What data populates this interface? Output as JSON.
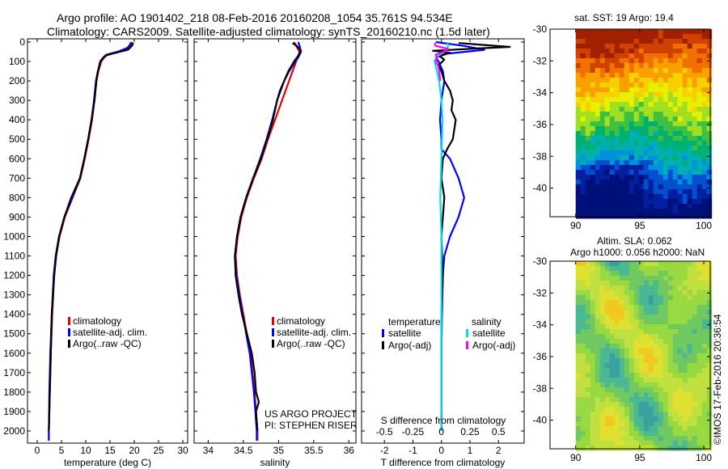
{
  "header": {
    "line1": "Argo profile: AO 1901402_218 08-Feb-2016 20160208_1054 35.761S 94.534E",
    "line2": "Climatology: CARS2009. Satellite-adjusted climatology: synTS_20160210.nc (1.5d later)"
  },
  "colors": {
    "climatology": "#e00000",
    "satellite": "#0000ff",
    "argo": "#000000",
    "sat_salinity": "#00e0e0",
    "argo_salinity": "#ff00ff"
  },
  "chart_data": [
    {
      "type": "line",
      "id": "temperature",
      "xlabel": "temperature (deg C)",
      "ylabel": "",
      "xlim": [
        -2,
        31
      ],
      "ylim": [
        2050,
        0
      ],
      "x_ticks": [
        0,
        5,
        10,
        15,
        20,
        25,
        30
      ],
      "y_ticks": [
        0,
        100,
        200,
        300,
        400,
        500,
        600,
        700,
        800,
        900,
        1000,
        1100,
        1200,
        1300,
        1400,
        1500,
        1600,
        1700,
        1800,
        1900,
        2000
      ],
      "legend": [
        "climatology",
        "satellite-adj. clim.",
        "Argo(..raw -QC)"
      ],
      "series": [
        {
          "name": "climatology",
          "color": "#e00000",
          "y": [
            0,
            10,
            30,
            50,
            65,
            80,
            100,
            150,
            200,
            250,
            300,
            400,
            500,
            600,
            700,
            800,
            900,
            1000,
            1100,
            1200,
            1400,
            1600,
            1800,
            2000,
            2050
          ],
          "values": [
            19.6,
            19.5,
            19.0,
            17.0,
            14.5,
            13.8,
            13.2,
            12.6,
            12.2,
            12.0,
            11.8,
            11.3,
            10.6,
            9.8,
            8.9,
            7.3,
            5.7,
            4.6,
            3.9,
            3.5,
            3.1,
            2.8,
            2.6,
            2.4,
            2.4
          ]
        },
        {
          "name": "satellite-adj. clim.",
          "color": "#0000ff",
          "y": [
            0,
            10,
            30,
            50,
            65,
            80,
            100,
            150,
            200,
            250,
            300,
            400,
            500,
            600,
            700,
            800,
            900,
            1000,
            1100,
            1200,
            1400,
            1600,
            1800,
            2000,
            2050
          ],
          "values": [
            19.3,
            19.2,
            18.6,
            16.6,
            14.3,
            13.6,
            13.0,
            12.5,
            12.1,
            11.9,
            11.7,
            11.2,
            10.5,
            9.7,
            8.8,
            7.2,
            5.6,
            4.5,
            3.8,
            3.4,
            3.0,
            2.7,
            2.5,
            2.4,
            2.4
          ]
        },
        {
          "name": "Argo(..raw -QC)",
          "color": "#000000",
          "y": [
            5,
            20,
            40,
            55,
            70,
            85,
            100,
            150,
            200,
            300,
            400,
            500,
            600,
            700,
            800,
            900,
            1000,
            1100,
            1200,
            1400,
            1600,
            1800,
            1900,
            2000
          ],
          "values": [
            19.8,
            19.5,
            18.7,
            16.2,
            14.0,
            13.5,
            13.0,
            12.5,
            12.2,
            11.8,
            11.2,
            10.5,
            9.7,
            8.8,
            7.0,
            5.6,
            4.5,
            3.9,
            3.5,
            3.0,
            2.8,
            2.6,
            2.5,
            2.4
          ]
        }
      ]
    },
    {
      "type": "line",
      "id": "salinity",
      "xlabel": "salinity",
      "xlim": [
        33.8,
        36.1
      ],
      "ylim": [
        2050,
        0
      ],
      "x_ticks": [
        34,
        34.5,
        35,
        35.5,
        36
      ],
      "legend": [
        "climatology",
        "satellite-adj. clim.",
        "Argo(..raw -QC)"
      ],
      "annotation": [
        "US ARGO PROJECT",
        "PI: STEPHEN RISER"
      ],
      "series": [
        {
          "name": "climatology",
          "color": "#e00000",
          "y": [
            0,
            20,
            50,
            80,
            100,
            150,
            200,
            250,
            300,
            400,
            500,
            600,
            700,
            800,
            900,
            1000,
            1100,
            1200,
            1300,
            1400,
            1500,
            1600,
            1700,
            1800,
            1900,
            2000,
            2050
          ],
          "values": [
            35.22,
            35.25,
            35.3,
            35.27,
            35.25,
            35.2,
            35.15,
            35.1,
            35.05,
            34.95,
            34.85,
            34.76,
            34.65,
            34.55,
            34.47,
            34.42,
            34.39,
            34.41,
            34.45,
            34.5,
            34.55,
            34.6,
            34.63,
            34.66,
            34.68,
            34.7,
            34.7
          ]
        },
        {
          "name": "satellite-adj. clim.",
          "color": "#0000ff",
          "y": [
            0,
            20,
            50,
            80,
            100,
            150,
            200,
            250,
            300,
            400,
            500,
            600,
            700,
            800,
            900,
            1000,
            1100,
            1200,
            1300,
            1400,
            1500,
            1600,
            1700,
            1800,
            1900,
            2000,
            2050
          ],
          "values": [
            35.28,
            35.3,
            35.32,
            35.28,
            35.24,
            35.15,
            35.08,
            35.03,
            34.98,
            34.91,
            34.83,
            34.74,
            34.64,
            34.54,
            34.46,
            34.41,
            34.38,
            34.4,
            34.44,
            34.49,
            34.54,
            34.59,
            34.62,
            34.65,
            34.67,
            34.69,
            34.69
          ]
        },
        {
          "name": "Argo(..raw -QC)",
          "color": "#000000",
          "y": [
            5,
            20,
            40,
            60,
            80,
            100,
            150,
            200,
            250,
            300,
            400,
            500,
            600,
            700,
            800,
            900,
            1000,
            1100,
            1200,
            1300,
            1400,
            1500,
            1600,
            1700,
            1800,
            1850,
            1900,
            2000
          ],
          "values": [
            35.2,
            35.26,
            35.31,
            35.3,
            35.26,
            35.22,
            35.14,
            35.08,
            35.02,
            34.98,
            34.92,
            34.84,
            34.75,
            34.64,
            34.54,
            34.46,
            34.41,
            34.38,
            34.39,
            34.43,
            34.48,
            34.55,
            34.62,
            34.66,
            34.68,
            34.72,
            34.68,
            34.7
          ]
        }
      ]
    },
    {
      "type": "line",
      "id": "difference",
      "xlabel": "T difference from climatology",
      "xlabel_top": "S difference from climatology",
      "xlim": [
        -2.8,
        2.9
      ],
      "ylim": [
        2050,
        0
      ],
      "x_ticks": [
        -2,
        -1,
        0,
        1,
        2
      ],
      "s_ticks": [
        {
          "v": -0.5,
          "label": "-0.5"
        },
        {
          "v": -0.25,
          "label": "-0.25"
        },
        {
          "v": 0,
          "label": "0"
        },
        {
          "v": 0.25,
          "label": "0.25"
        },
        {
          "v": 0.5,
          "label": "0.5"
        }
      ],
      "legend_headers": [
        "temperature",
        "salinity"
      ],
      "legend": [
        "satellite",
        "Argo(-adj)",
        "satellite",
        "Argo(-adj)"
      ],
      "series": [
        {
          "name": "satellite",
          "group": "temperature",
          "color": "#0000ff",
          "y": [
            0,
            20,
            40,
            60,
            80,
            100,
            150,
            200,
            250,
            300,
            400,
            500,
            550,
            600,
            700,
            800,
            900,
            1000,
            1100,
            1200,
            1400,
            1600,
            1800,
            2000
          ],
          "values": [
            -0.2,
            0.8,
            1.5,
            0.2,
            -0.2,
            -0.1,
            0.05,
            0.1,
            0.05,
            0.0,
            -0.05,
            0.0,
            0.0,
            0.3,
            0.6,
            0.8,
            0.6,
            0.3,
            0.1,
            0.05,
            0.02,
            0.0,
            0.0,
            0.0
          ]
        },
        {
          "name": "Argo(-adj)",
          "group": "temperature",
          "color": "#000000",
          "y": [
            5,
            15,
            25,
            35,
            45,
            55,
            70,
            90,
            120,
            150,
            200,
            250,
            300,
            350,
            400,
            450,
            500,
            550,
            600,
            700,
            800,
            900,
            1000,
            1200,
            1400,
            1600,
            1800,
            2000
          ],
          "values": [
            0.6,
            1.5,
            2.4,
            1.0,
            -0.3,
            0.3,
            -0.1,
            0.1,
            -0.1,
            0.0,
            0.1,
            0.3,
            0.4,
            0.35,
            0.5,
            0.45,
            0.4,
            0.2,
            0.05,
            0.0,
            0.1,
            0.05,
            0.0,
            0.05,
            0.0,
            0.0,
            0.0,
            0.0
          ]
        },
        {
          "name": "satellite",
          "group": "salinity",
          "color": "#00e0e0",
          "y": [
            0,
            20,
            40,
            60,
            80,
            100,
            150,
            200,
            300,
            400,
            600,
            800,
            1000,
            1200,
            1400,
            1600,
            1800,
            2000
          ],
          "values": [
            0.05,
            0.06,
            0.04,
            0.0,
            -0.05,
            -0.06,
            -0.04,
            -0.02,
            0.0,
            0.01,
            0.0,
            -0.01,
            0.0,
            0.0,
            0.0,
            0.0,
            0.0,
            0.0
          ]
        },
        {
          "name": "Argo(-adj)",
          "group": "salinity",
          "color": "#ff00ff",
          "y": [
            5,
            20,
            35,
            50,
            65,
            80,
            100,
            120,
            150,
            200
          ],
          "values": [
            -0.06,
            -0.05,
            0.06,
            0.02,
            -0.05,
            -0.04,
            -0.05,
            -0.03,
            -0.02,
            -0.01
          ]
        }
      ]
    }
  ],
  "maps": {
    "sst": {
      "title": "sat. SST: 19 Argo: 19.4",
      "x_ticks": [
        "90",
        "95",
        "100"
      ],
      "y_ticks": [
        "-30",
        "-32",
        "-34",
        "-36",
        "-38",
        "-40"
      ],
      "x_range": [
        88,
        100.5
      ],
      "y_range": [
        -41.8,
        -30
      ]
    },
    "sla": {
      "title_line1": "Altim. SLA: 0.062",
      "title_line2": "Argo h1000: 0.056 h2000: NaN",
      "x_ticks": [
        "90",
        "95",
        "100"
      ],
      "y_ticks": [
        "-30",
        "-32",
        "-34",
        "-36",
        "-38",
        "-40"
      ],
      "x_range": [
        88,
        100.5
      ],
      "y_range": [
        -41.8,
        -30
      ]
    }
  },
  "footer": {
    "credit": "©IMOS 17-Feb-2016 20:36:54"
  }
}
